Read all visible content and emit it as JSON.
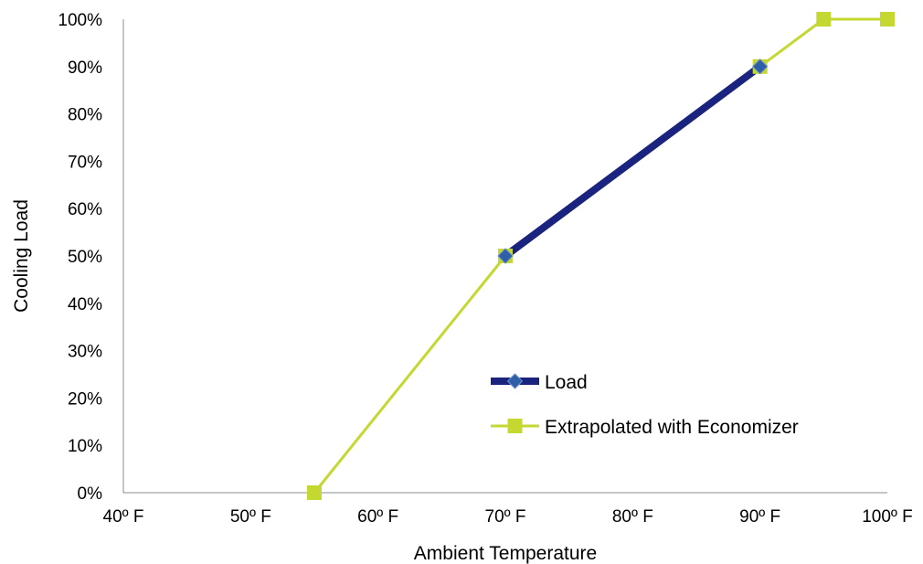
{
  "chart_data": {
    "type": "line",
    "xlabel": "Ambient Temperature",
    "ylabel": "Cooling Load",
    "xlim": [
      40,
      100
    ],
    "ylim": [
      0,
      100
    ],
    "x_ticks": [
      {
        "value": 40,
        "label": "40º F"
      },
      {
        "value": 50,
        "label": "50º F"
      },
      {
        "value": 60,
        "label": "60º F"
      },
      {
        "value": 70,
        "label": "70º F"
      },
      {
        "value": 80,
        "label": "80º F"
      },
      {
        "value": 90,
        "label": "90º F"
      },
      {
        "value": 100,
        "label": "100º F"
      }
    ],
    "y_ticks": [
      {
        "value": 0,
        "label": "0%"
      },
      {
        "value": 10,
        "label": "10%"
      },
      {
        "value": 20,
        "label": "20%"
      },
      {
        "value": 30,
        "label": "30%"
      },
      {
        "value": 40,
        "label": "40%"
      },
      {
        "value": 50,
        "label": "50%"
      },
      {
        "value": 60,
        "label": "60%"
      },
      {
        "value": 70,
        "label": "70%"
      },
      {
        "value": 80,
        "label": "80%"
      },
      {
        "value": 90,
        "label": "90%"
      },
      {
        "value": 100,
        "label": "100%"
      }
    ],
    "grid": false,
    "legend_position": "lower-right inside plot",
    "series": [
      {
        "name": "Load",
        "color": "#1a237e",
        "marker_color": "#2e5fa8",
        "marker": "diamond",
        "points": [
          {
            "x": 70,
            "y": 50
          },
          {
            "x": 90,
            "y": 90
          }
        ]
      },
      {
        "name": "Extrapolated with Economizer",
        "color": "#c4d831",
        "marker_color": "#c4d831",
        "marker": "square",
        "points": [
          {
            "x": 55,
            "y": 0
          },
          {
            "x": 70,
            "y": 50
          },
          {
            "x": 90,
            "y": 90
          },
          {
            "x": 95,
            "y": 100
          },
          {
            "x": 100,
            "y": 100
          }
        ]
      }
    ]
  }
}
